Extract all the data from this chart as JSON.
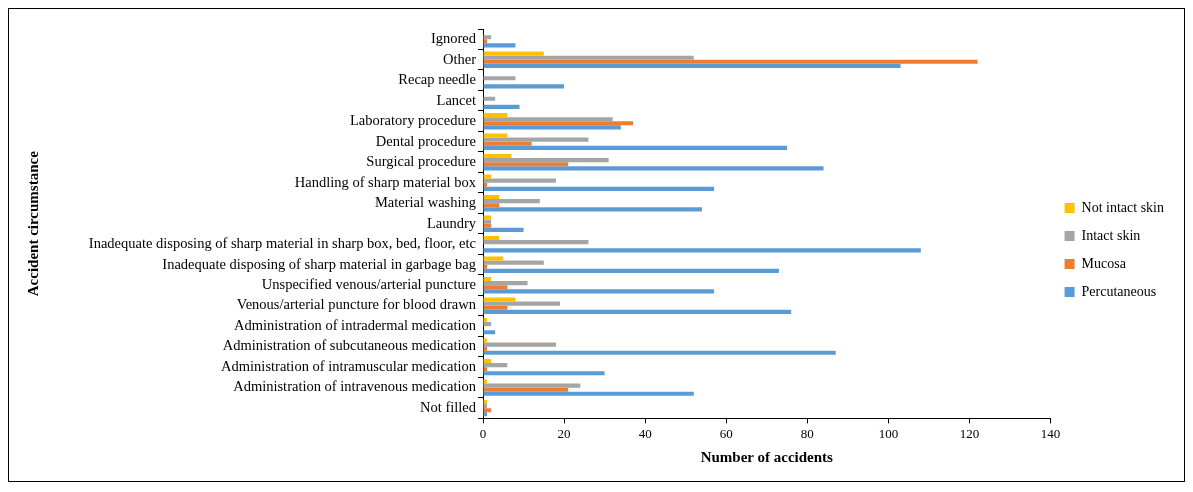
{
  "chart_data": {
    "type": "bar",
    "orientation": "horizontal",
    "xlabel": "Number of accidents",
    "ylabel": "Accident circumstance",
    "categories": [
      "Ignored",
      "Other",
      "Recap needle",
      "Lancet",
      "Laboratory procedure",
      "Dental procedure",
      "Surgical procedure",
      "Handling of sharp material box",
      "Material washing",
      "Laundry",
      "Inadequate disposing of sharp material in sharp box, bed, floor, etc",
      "Inadequate disposing of sharp material in garbage bag",
      "Unspecified venous/arterial puncture",
      "Venous/arterial puncture for blood drawn",
      "Administration of intradermal medication",
      "Administration of subcutaneous medication",
      "Administration of intramuscular medication",
      "Administration of intravenous medication",
      "Not filled"
    ],
    "series": [
      {
        "name": "Not intact skin",
        "color": "#ffc000",
        "values": [
          0,
          15,
          0,
          0,
          6,
          6,
          7,
          2,
          4,
          2,
          4,
          5,
          2,
          8,
          1,
          1,
          2,
          1,
          1
        ]
      },
      {
        "name": "Intact skin",
        "color": "#a5a5a5",
        "values": [
          2,
          52,
          8,
          3,
          32,
          26,
          31,
          18,
          14,
          2,
          26,
          15,
          11,
          19,
          2,
          18,
          6,
          24,
          1
        ]
      },
      {
        "name": "Mucosa",
        "color": "#ed7d31",
        "values": [
          1,
          122,
          0,
          0,
          37,
          12,
          21,
          1,
          4,
          2,
          0,
          1,
          6,
          6,
          0,
          1,
          1,
          21,
          2
        ]
      },
      {
        "name": "Percutaneous",
        "color": "#5b9bd5",
        "values": [
          8,
          103,
          20,
          9,
          34,
          75,
          84,
          57,
          54,
          10,
          108,
          73,
          57,
          76,
          3,
          87,
          30,
          52,
          1
        ]
      }
    ],
    "xlim": [
      0,
      140
    ],
    "xticks": [
      0,
      20,
      40,
      60,
      80,
      100,
      120,
      140
    ],
    "grid": false,
    "legend": "right"
  }
}
